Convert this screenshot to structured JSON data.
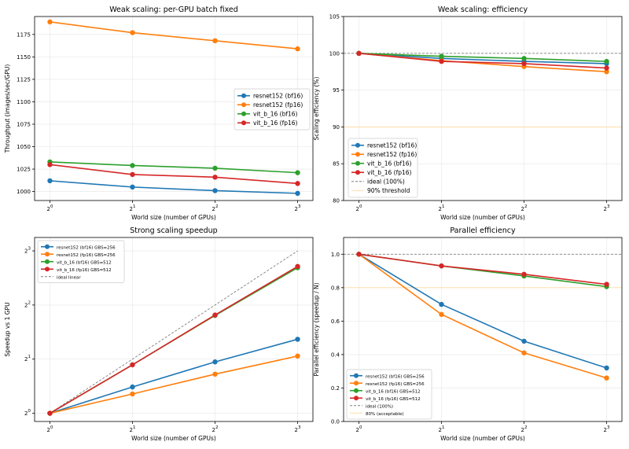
{
  "chart_data": [
    {
      "type": "line",
      "title": "Weak scaling: per-GPU batch fixed",
      "xlabel": "World size (number of GPUs)",
      "ylabel": "Throughput (images/sec/GPU)",
      "x": [
        1,
        2,
        4,
        8
      ],
      "x_ticks": [
        "2^0",
        "2^1",
        "2^2",
        "2^3"
      ],
      "x_scale": "log2",
      "ylim": [
        990,
        1195
      ],
      "y_ticks": [
        "1000",
        "1025",
        "1050",
        "1075",
        "1100",
        "1125",
        "1150",
        "1175"
      ],
      "grid": true,
      "legend_position": "center-right",
      "series": [
        {
          "name": "resnet152 (bf16)",
          "color": "#1f77b4",
          "values": [
            1012,
            1005,
            1001,
            998
          ]
        },
        {
          "name": "resnet152 (fp16)",
          "color": "#ff7f0e",
          "values": [
            1189,
            1177,
            1168,
            1159
          ]
        },
        {
          "name": "vit_b_16 (bf16)",
          "color": "#2ca02c",
          "values": [
            1033,
            1029,
            1026,
            1021
          ]
        },
        {
          "name": "vit_b_16 (fp16)",
          "color": "#d62728",
          "values": [
            1030,
            1019,
            1016,
            1009
          ]
        }
      ]
    },
    {
      "type": "line",
      "title": "Weak scaling: efficiency",
      "xlabel": "World size (number of GPUs)",
      "ylabel": "Scaling efficiency (%)",
      "x": [
        1,
        2,
        4,
        8
      ],
      "x_ticks": [
        "2^0",
        "2^1",
        "2^2",
        "2^3"
      ],
      "x_scale": "log2",
      "ylim": [
        80,
        105
      ],
      "y_ticks": [
        "80",
        "85",
        "90",
        "95",
        "100",
        "105"
      ],
      "grid": true,
      "legend_position": "lower-left",
      "series": [
        {
          "name": "resnet152 (bf16)",
          "color": "#1f77b4",
          "values": [
            100,
            99.3,
            98.9,
            98.6
          ]
        },
        {
          "name": "resnet152 (fp16)",
          "color": "#ff7f0e",
          "values": [
            100,
            99.0,
            98.2,
            97.5
          ]
        },
        {
          "name": "vit_b_16 (bf16)",
          "color": "#2ca02c",
          "values": [
            100,
            99.6,
            99.3,
            98.9
          ]
        },
        {
          "name": "vit_b_16 (fp16)",
          "color": "#d62728",
          "values": [
            100,
            98.9,
            98.6,
            98.0
          ]
        }
      ],
      "reference_lines": [
        {
          "name": "ideal (100%)",
          "value": 100,
          "color": "#7f7f7f",
          "style": "dashed"
        },
        {
          "name": "90% threshold",
          "value": 90,
          "color": "#ffd9a0",
          "style": "solid"
        }
      ]
    },
    {
      "type": "line",
      "title": "Strong scaling speedup",
      "xlabel": "World size (number of GPUs)",
      "ylabel": "Speedup vs 1 GPU",
      "x": [
        1,
        2,
        4,
        8
      ],
      "x_ticks": [
        "2^0",
        "2^1",
        "2^2",
        "2^3"
      ],
      "x_scale": "log2",
      "y_scale": "log2",
      "ylim": [
        0.9,
        9.5
      ],
      "y_ticks": [
        "2^0",
        "2^1",
        "2^2",
        "2^3"
      ],
      "grid": true,
      "legend_position": "top-left",
      "series": [
        {
          "name": "resnet152 (bf16) GBS=256",
          "color": "#1f77b4",
          "values": [
            1,
            1.4,
            1.93,
            2.58
          ]
        },
        {
          "name": "resnet152 (fp16) GBS=256",
          "color": "#ff7f0e",
          "values": [
            1,
            1.28,
            1.65,
            2.08
          ]
        },
        {
          "name": "vit_b_16 (bf16) GBS=512",
          "color": "#2ca02c",
          "values": [
            1,
            1.86,
            3.5,
            6.45
          ]
        },
        {
          "name": "vit_b_16 (fp16) GBS=512",
          "color": "#d62728",
          "values": [
            1,
            1.86,
            3.52,
            6.56
          ]
        }
      ],
      "reference_lines": [
        {
          "name": "ideal linear",
          "values": [
            1,
            2,
            4,
            8
          ],
          "color": "#7f7f7f",
          "style": "dashed"
        }
      ]
    },
    {
      "type": "line",
      "title": "Parallel efficiency",
      "xlabel": "World size (number of GPUs)",
      "ylabel": "Parallel efficiency (speedup / N)",
      "x": [
        1,
        2,
        4,
        8
      ],
      "x_ticks": [
        "2^0",
        "2^1",
        "2^2",
        "2^3"
      ],
      "x_scale": "log2",
      "ylim": [
        0,
        1.1
      ],
      "y_ticks": [
        "0.0",
        "0.2",
        "0.4",
        "0.6",
        "0.8",
        "1.0"
      ],
      "grid": true,
      "legend_position": "lower-left",
      "series": [
        {
          "name": "resnet152 (bf16) GBS=256",
          "color": "#1f77b4",
          "values": [
            1.0,
            0.7,
            0.48,
            0.32
          ]
        },
        {
          "name": "resnet152 (fp16) GBS=256",
          "color": "#ff7f0e",
          "values": [
            1.0,
            0.64,
            0.41,
            0.26
          ]
        },
        {
          "name": "vit_b_16 (bf16) GBS=512",
          "color": "#2ca02c",
          "values": [
            1.0,
            0.93,
            0.87,
            0.806
          ]
        },
        {
          "name": "vit_b_16 (fp16) GBS=512",
          "color": "#d62728",
          "values": [
            1.0,
            0.93,
            0.88,
            0.82
          ]
        }
      ],
      "reference_lines": [
        {
          "name": "ideal (100%)",
          "value": 1.0,
          "color": "#7f7f7f",
          "style": "dashed"
        },
        {
          "name": "80% (acceptable)",
          "value": 0.8,
          "color": "#ffd9a0",
          "style": "solid"
        }
      ]
    }
  ]
}
